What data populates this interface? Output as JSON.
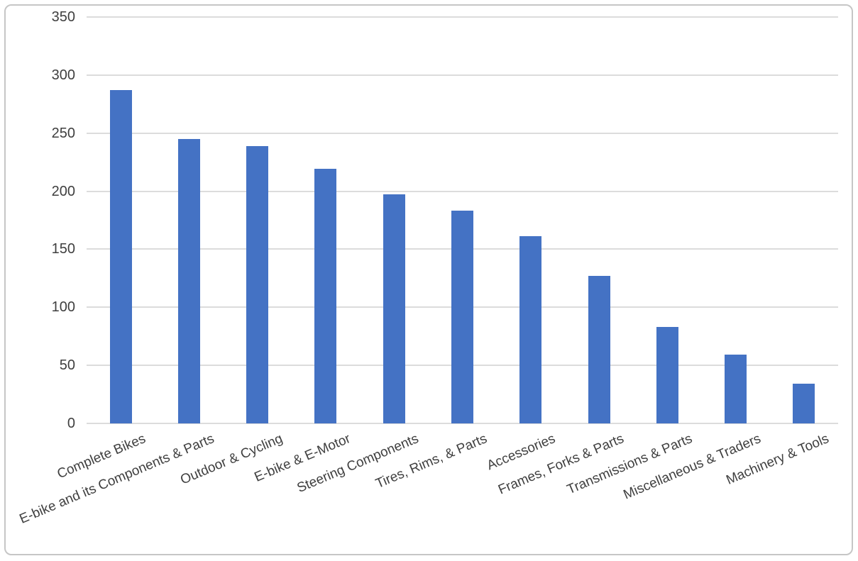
{
  "chart_data": {
    "type": "bar",
    "title": "",
    "xlabel": "",
    "ylabel": "",
    "categories": [
      "Complete Bikes",
      "E-bike and its Components & Parts",
      "Outdoor & Cycling",
      "E-bike & E-Motor",
      "Steering Components",
      "Tires, Rims, & Parts",
      "Accessories",
      "Frames, Forks & Parts",
      "Transmissions & Parts",
      "Miscellaneous & Traders",
      "Machinery & Tools"
    ],
    "values": [
      287,
      245,
      239,
      219,
      197,
      183,
      161,
      127,
      83,
      59,
      34
    ],
    "ylim": [
      0,
      350
    ],
    "yticks": [
      0,
      50,
      100,
      150,
      200,
      250,
      300,
      350
    ],
    "grid": true,
    "legend": false,
    "bar_color": "#4472c4",
    "gridline_color": "#dcdcdc",
    "tick_label_color": "#3f3f3f",
    "frame_border_color": "#c6c6c6"
  }
}
